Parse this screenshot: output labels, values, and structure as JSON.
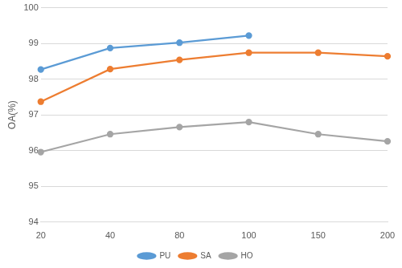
{
  "chart_data": {
    "type": "line",
    "y_label": "OA(%)",
    "categories": [
      "20",
      "40",
      "80",
      "100",
      "150",
      "200"
    ],
    "series": [
      {
        "name": "PU",
        "color": "#5b9bd5",
        "marker": "circle",
        "values": [
          98.27,
          98.87,
          99.02,
          99.22,
          null,
          null
        ]
      },
      {
        "name": "SA",
        "color": "#ed7d31",
        "marker": "circle",
        "values": [
          97.37,
          98.28,
          98.54,
          98.74,
          98.74,
          98.64
        ]
      },
      {
        "name": "HO",
        "color": "#a5a5a5",
        "marker": "circle",
        "values": [
          95.96,
          96.46,
          96.66,
          96.8,
          96.46,
          96.26
        ]
      }
    ],
    "ylim": [
      94,
      100
    ],
    "yticks": [
      94,
      95,
      96,
      97,
      98,
      99,
      100
    ],
    "grid": true,
    "legend": "bottom"
  }
}
